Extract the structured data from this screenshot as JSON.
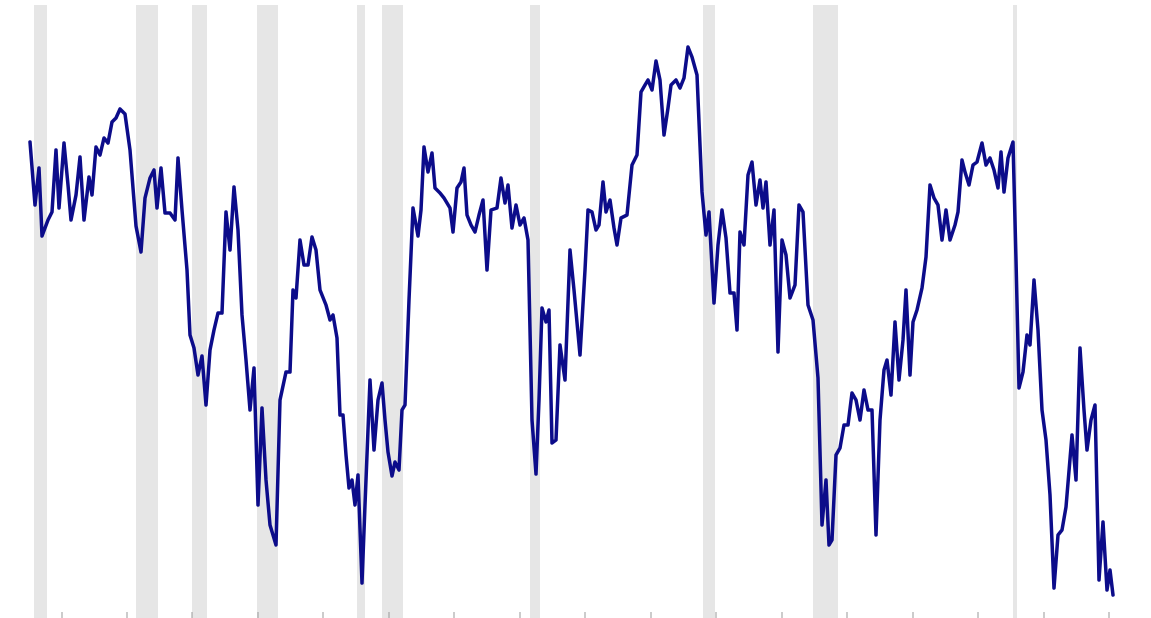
{
  "chart_data": {
    "type": "line",
    "xlim": [
      0,
      115.1
    ],
    "ylim": [
      0,
      61.8
    ],
    "xticks": [
      6.2,
      12.7,
      19.2,
      25.8,
      32.3,
      38.9,
      45.4,
      52,
      58.5,
      65.1,
      71.6,
      78.2,
      84.7,
      91.3,
      97.8,
      104.4,
      110.9
    ],
    "shaded_ranges": [
      [
        3.4,
        4.7
      ],
      [
        13.6,
        15.8
      ],
      [
        19.2,
        20.7
      ],
      [
        25.7,
        27.8
      ],
      [
        35.7,
        36.5
      ],
      [
        38.2,
        40.3
      ],
      [
        53,
        54
      ],
      [
        70.3,
        71.5
      ],
      [
        81.3,
        83.8
      ],
      [
        101.3,
        101.7
      ]
    ],
    "shade_color": "#e6e6e6",
    "x": [
      3,
      3.5,
      3.9,
      4.2,
      4.8,
      5.2,
      5.6,
      5.9,
      6.4,
      6.8,
      7.1,
      7.6,
      8,
      8.4,
      8.9,
      9.2,
      9.6,
      10,
      10.4,
      10.8,
      11.2,
      11.6,
      12,
      12.5,
      13,
      13.6,
      14.1,
      14.5,
      15,
      15.4,
      15.7,
      16.1,
      16.5,
      17,
      17.5,
      17.8,
      18.2,
      18.7,
      19,
      19.4,
      19.8,
      20.2,
      20.6,
      21,
      21.4,
      21.8,
      22.2,
      22.6,
      23,
      23.4,
      23.8,
      24.2,
      24.6,
      25,
      25.4,
      25.8,
      26.2,
      26.6,
      27,
      27.6,
      28,
      28.6,
      29,
      29.3,
      29.6,
      30,
      30.4,
      30.8,
      31.2,
      31.6,
      32,
      32.6,
      33,
      33.3,
      33.7,
      34,
      34.3,
      34.6,
      34.9,
      35.2,
      35.5,
      35.8,
      36.2,
      36.5,
      37,
      37.4,
      37.8,
      38.2,
      38.5,
      38.8,
      39.2,
      39.5,
      39.9,
      40.2,
      40.5,
      40.9,
      41.3,
      41.8,
      42.1,
      42.4,
      42.8,
      43.2,
      43.5,
      44,
      44.4,
      45,
      45.3,
      45.7,
      46.1,
      46.4,
      46.7,
      47.1,
      47.5,
      47.9,
      48.3,
      48.7,
      49.1,
      49.7,
      50.1,
      50.5,
      50.8,
      51.2,
      51.6,
      52,
      52.4,
      52.8,
      53.2,
      53.6,
      53.9,
      54.2,
      54.6,
      54.9,
      55.2,
      55.6,
      56,
      56.5,
      57,
      57.4,
      58,
      58.5,
      58.8,
      59.2,
      59.6,
      59.9,
      60.3,
      60.6,
      61,
      61.4,
      61.7,
      62.1,
      62.7,
      63.2,
      63.7,
      64.1,
      64.5,
      64.8,
      65.2,
      65.6,
      66,
      66.4,
      66.8,
      67.1,
      67.6,
      68,
      68.4,
      68.8,
      69.2,
      69.7,
      70.2,
      70.6,
      70.9,
      71.4,
      71.8,
      72.2,
      72.6,
      73,
      73.4,
      73.7,
      74,
      74.4,
      74.8,
      75.2,
      75.6,
      76,
      76.3,
      76.6,
      77,
      77.4,
      77.8,
      78.2,
      78.6,
      79,
      79.5,
      79.9,
      80.3,
      80.8,
      81.3,
      81.8,
      82.2,
      82.6,
      82.9,
      83.2,
      83.6,
      84,
      84.4,
      84.8,
      85.2,
      85.6,
      86,
      86.4,
      86.8,
      87.2,
      87.6,
      88,
      88.4,
      88.7,
      89.1,
      89.5,
      89.9,
      90.3,
      90.6,
      91,
      91.3,
      91.7,
      92.2,
      92.6,
      93,
      93.4,
      93.8,
      94.2,
      94.6,
      95,
      95.5,
      95.8,
      96.2,
      96.5,
      96.9,
      97.3,
      97.7,
      98.2,
      98.6,
      99,
      99.4,
      99.8,
      100.1,
      100.4,
      100.8,
      101.3,
      101.6,
      101.9,
      102.3,
      102.7,
      103,
      103.4,
      103.8,
      104.2,
      104.6,
      105,
      105.4,
      105.8,
      106.2,
      106.6,
      107.2,
      107.6,
      108,
      108.4,
      108.7,
      109.1,
      109.5,
      109.9,
      110.3,
      110.7,
      111,
      111.3
    ],
    "values": [
      47.6,
      41.3,
      45,
      38.2,
      39.8,
      40.6,
      46.8,
      41,
      47.5,
      43.3,
      39.8,
      42.3,
      46.1,
      39.8,
      44.1,
      42.3,
      47.1,
      46.3,
      48,
      47.5,
      49.6,
      50,
      50.9,
      50.4,
      46.8,
      39.2,
      36.6,
      42,
      44,
      44.8,
      41,
      45,
      40.5,
      40.5,
      39.8,
      46,
      40.8,
      34.8,
      28.3,
      27,
      24.3,
      26.2,
      21.3,
      26.8,
      28.8,
      30.5,
      30.5,
      40.6,
      36.8,
      43.1,
      38.8,
      30.3,
      25.8,
      20.8,
      25,
      11.3,
      21,
      13.8,
      9.3,
      7.3,
      21.8,
      24.6,
      24.6,
      32.8,
      32,
      37.8,
      35.3,
      35.3,
      38.1,
      36.8,
      32.8,
      31.3,
      29.8,
      30.3,
      28,
      20.3,
      20.3,
      16.3,
      13,
      13.8,
      11.3,
      14.3,
      3.5,
      11.3,
      23.8,
      16.8,
      21.8,
      23.5,
      19.8,
      16.6,
      14.2,
      15.6,
      14.8,
      20.8,
      21.3,
      31.8,
      41,
      38.2,
      40.8,
      47.1,
      44.6,
      46.5,
      43,
      42.5,
      42,
      41,
      38.6,
      43,
      43.6,
      45,
      40.3,
      39.3,
      38.6,
      40.3,
      41.8,
      34.8,
      40.8,
      41,
      44,
      41.5,
      43.3,
      39,
      41.3,
      39.3,
      40,
      37.8,
      19.8,
      14.4,
      21.8,
      31,
      29.6,
      30.8,
      17.5,
      17.8,
      27.3,
      23.8,
      36.8,
      32.8,
      26.3,
      34.8,
      40.8,
      40.6,
      38.8,
      39.3,
      43.6,
      40.6,
      41.8,
      39,
      37.3,
      40,
      40.3,
      45.3,
      46.3,
      52.6,
      53.3,
      53.8,
      52.8,
      55.7,
      53.8,
      48.3,
      51,
      53.3,
      53.8,
      53,
      54,
      57.1,
      56.1,
      54.3,
      42.6,
      38.3,
      40.6,
      31.5,
      37.3,
      40.8,
      38,
      32.5,
      32.5,
      28.8,
      38.6,
      37.3,
      44.3,
      45.6,
      41.3,
      43.8,
      41,
      43.6,
      37.3,
      40.8,
      26.6,
      37.8,
      36.3,
      32,
      33.3,
      41.3,
      40.6,
      31.3,
      29.8,
      24,
      9.3,
      13.8,
      7.3,
      7.8,
      16.3,
      17,
      19.3,
      19.3,
      22.5,
      21.8,
      19.8,
      22.8,
      20.8,
      20.8,
      8.3,
      19.8,
      24.8,
      25.8,
      22.3,
      29.6,
      23.8,
      27.8,
      32.8,
      24.3,
      29.6,
      30.8,
      33,
      36.1,
      43.3,
      42,
      41.3,
      37.8,
      40.8,
      37.8,
      39.3,
      40.6,
      45.8,
      44.6,
      43.3,
      45.3,
      45.6,
      47.5,
      45.3,
      46,
      44.8,
      43,
      46.6,
      42.6,
      46,
      47.6,
      35.8,
      23,
      24.6,
      28.3,
      27.3,
      33.8,
      28.8,
      20.8,
      17.8,
      12.3,
      3,
      8.3,
      8.8,
      11.1,
      18.3,
      13.8,
      27,
      20.8,
      16.8,
      19.8,
      21.3,
      3.8,
      9.6,
      2.8,
      4.8,
      2.3
    ],
    "color": "#0c0c8a"
  }
}
